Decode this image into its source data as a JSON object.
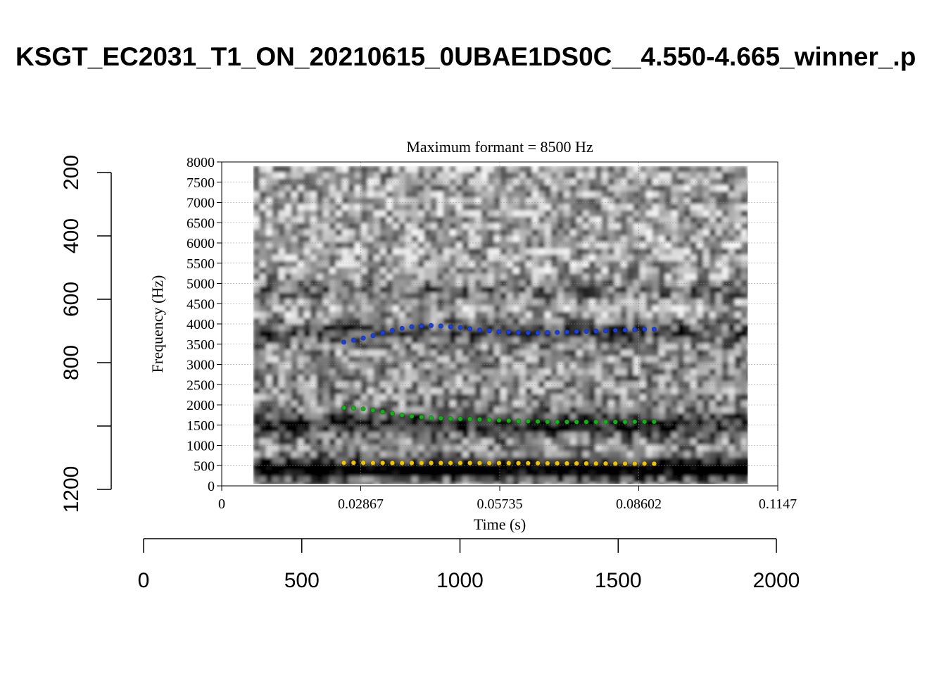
{
  "page": {
    "title": "KSGT_EC2031_T1_ON_20210615_0UBAE1DS0C__4.550-4.665_winner_.p"
  },
  "colors": {
    "background": "#ffffff",
    "f1": "#f2c200",
    "f2": "#13b013",
    "f3": "#1a3fe0",
    "grid": "#8c8c8c",
    "axis": "#000000"
  },
  "outer_axes": {
    "x_ticks": [
      "0",
      "500",
      "1000",
      "1500",
      "2000"
    ],
    "y_ticks": [
      "200",
      "400",
      "600",
      "800",
      "1200"
    ],
    "xlim": [
      0,
      2000
    ],
    "ylim": [
      1200,
      200
    ]
  },
  "chart_data": {
    "type": "scatter",
    "title": "Maximum formant  =  8500 Hz",
    "xlabel": "Time (s)",
    "ylabel": "Frequency (Hz)",
    "xlim": [
      0,
      0.1147
    ],
    "ylim": [
      0,
      8000
    ],
    "x_tick_labels": [
      "0",
      "0.02867",
      "0.05735",
      "0.08602",
      "0.1147"
    ],
    "x_tick_values": [
      0,
      0.02867,
      0.05735,
      0.08602,
      0.1147
    ],
    "y_tick_labels": [
      "0",
      "500",
      "1000",
      "1500",
      "2000",
      "2500",
      "3000",
      "3500",
      "4000",
      "4500",
      "5000",
      "5500",
      "6000",
      "6500",
      "7000",
      "7500",
      "8000"
    ],
    "y_tick_values": [
      0,
      500,
      1000,
      1500,
      2000,
      2500,
      3000,
      3500,
      4000,
      4500,
      5000,
      5500,
      6000,
      6500,
      7000,
      7500,
      8000
    ],
    "grid": true,
    "background": "spectrogram",
    "spectrogram_range_s": [
      0.0065,
      0.1085
    ],
    "x": [
      0.0252,
      0.0272,
      0.0292,
      0.0312,
      0.0332,
      0.0352,
      0.0372,
      0.0392,
      0.0412,
      0.0432,
      0.0452,
      0.0472,
      0.0492,
      0.0512,
      0.0532,
      0.0552,
      0.0572,
      0.0592,
      0.0612,
      0.0632,
      0.0652,
      0.0672,
      0.0692,
      0.0712,
      0.0732,
      0.0752,
      0.0772,
      0.0792,
      0.0812,
      0.0832,
      0.0852,
      0.0872,
      0.0892
    ],
    "series": [
      {
        "key": "f1",
        "values": [
          570,
          570,
          570,
          568,
          567,
          566,
          566,
          566,
          566,
          566,
          566,
          566,
          566,
          565,
          564,
          563,
          563,
          562,
          561,
          560,
          559,
          558,
          557,
          556,
          555,
          554,
          553,
          552,
          551,
          550,
          550,
          549,
          548
        ]
      },
      {
        "key": "f2",
        "values": [
          1930,
          1920,
          1900,
          1870,
          1830,
          1790,
          1750,
          1720,
          1700,
          1680,
          1670,
          1660,
          1655,
          1650,
          1640,
          1630,
          1620,
          1610,
          1600,
          1595,
          1590,
          1585,
          1580,
          1580,
          1580,
          1580,
          1580,
          1580,
          1580,
          1580,
          1585,
          1585,
          1585
        ]
      },
      {
        "key": "f3",
        "values": [
          3550,
          3600,
          3650,
          3710,
          3780,
          3840,
          3890,
          3930,
          3950,
          3960,
          3950,
          3930,
          3910,
          3880,
          3850,
          3830,
          3810,
          3800,
          3790,
          3780,
          3780,
          3785,
          3790,
          3800,
          3810,
          3815,
          3820,
          3830,
          3840,
          3850,
          3860,
          3870,
          3870
        ]
      }
    ]
  }
}
